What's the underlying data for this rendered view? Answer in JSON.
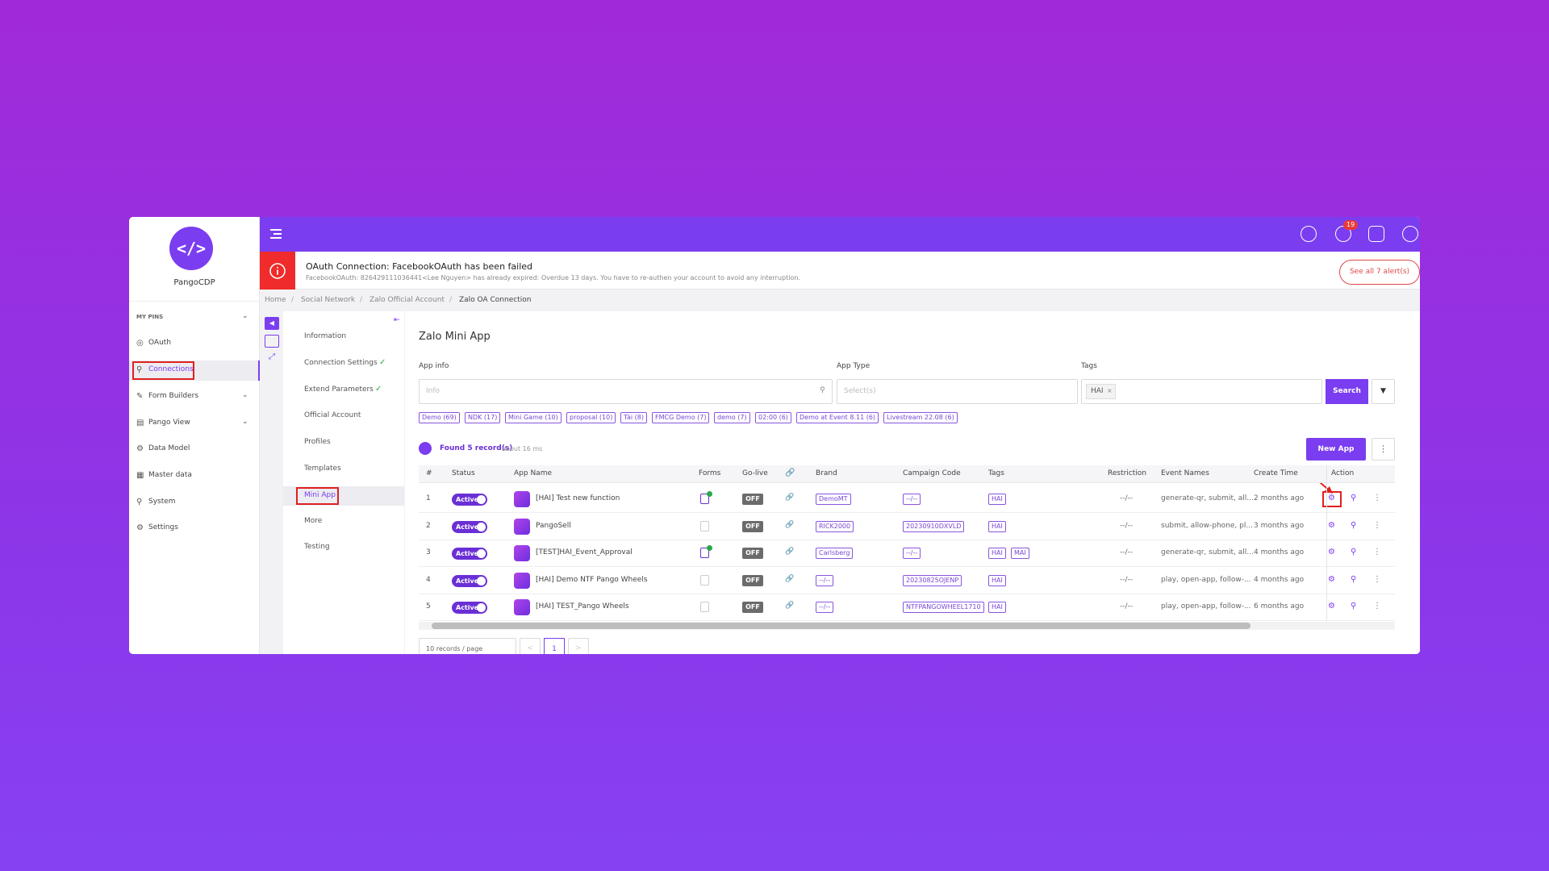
{
  "app": {
    "name": "PangoCDP"
  },
  "sidebar": {
    "pins_label": "MY PINS",
    "items": [
      "OAuth",
      "Connections",
      "Form Builders",
      "Pango View",
      "Data Model",
      "Master data",
      "System",
      "Settings"
    ]
  },
  "topbar": {
    "notification_count": 19
  },
  "alert": {
    "title": "OAuth Connection: FacebookOAuth has been failed",
    "message": "FacebookOAuth: 826429111036441<Lee Nguyen> has already expired: Overdue 13 days. You have to re-authen your account to avoid any interruption.",
    "button": "See all 7 alert(s)"
  },
  "breadcrumb": [
    "Home",
    "Social Network",
    "Zalo Official Account",
    "Zalo OA Connection"
  ],
  "submenu": [
    "Information",
    "Connection Settings",
    "Extend Parameters",
    "Official Account",
    "Profiles",
    "Templates",
    "Mini App",
    "More",
    "Testing"
  ],
  "main": {
    "title": "Zalo Mini App",
    "filters": {
      "app_info_label": "App info",
      "app_info_placeholder": "Info",
      "app_type_label": "App Type",
      "app_type_placeholder": "Select(s)",
      "tags_label": "Tags",
      "tags_selected": "HAI",
      "search_button": "Search"
    },
    "tag_chips": [
      "Demo (69)",
      "NDK (17)",
      "Mini Game (10)",
      "proposal (10)",
      "Tài (8)",
      "FMCG Demo (7)",
      "demo (7)",
      "02:00 (6)",
      "Demo at Event 8.11 (6)",
      "Livestream 22.08 (6)"
    ],
    "found": "Found 5 record(s)",
    "timing": "about 16 ms",
    "new_app": "New App"
  },
  "table": {
    "headers": [
      "#",
      "Status",
      "App Name",
      "Forms",
      "Go-live",
      "Brand",
      "Campaign Code",
      "Tags",
      "Restriction",
      "Event Names",
      "Create Time",
      "Action"
    ],
    "rows": [
      {
        "n": 1,
        "status": "Active",
        "name": "[HAI] Test new function",
        "go_live": "OFF",
        "brand": "DemoMT",
        "campaign": "--/--",
        "tags": [
          "HAI"
        ],
        "restriction": "--/--",
        "events": "generate-qr, submit, all...",
        "created": "2 months ago"
      },
      {
        "n": 2,
        "status": "Active",
        "name": "PangoSell",
        "go_live": "OFF",
        "brand": "RICK2000",
        "campaign": "20230910DXVLD",
        "tags": [
          "HAI"
        ],
        "restriction": "--/--",
        "events": "submit, allow-phone, pl...",
        "created": "3 months ago"
      },
      {
        "n": 3,
        "status": "Active",
        "name": "[TEST]HAI_Event_Approval",
        "go_live": "OFF",
        "brand": "Carlsberg",
        "campaign": "--/--",
        "tags": [
          "HAI",
          "MAI"
        ],
        "restriction": "--/--",
        "events": "generate-qr, submit, all...",
        "created": "4 months ago"
      },
      {
        "n": 4,
        "status": "Active",
        "name": "[HAI] Demo NTF Pango Wheels",
        "go_live": "OFF",
        "brand": "--/--",
        "campaign": "20230825OJENP",
        "tags": [
          "HAI"
        ],
        "restriction": "--/--",
        "events": "play, open-app, follow-...",
        "created": "4 months ago"
      },
      {
        "n": 5,
        "status": "Active",
        "name": "[HAI] TEST_Pango Wheels",
        "go_live": "OFF",
        "brand": "--/--",
        "campaign": "NTFPANGOWHEEL1710",
        "tags": [
          "HAI"
        ],
        "restriction": "--/--",
        "events": "play, open-app, follow-...",
        "created": "6 months ago"
      }
    ]
  },
  "pagination": {
    "page_size": "10 records / page",
    "page": 1
  }
}
